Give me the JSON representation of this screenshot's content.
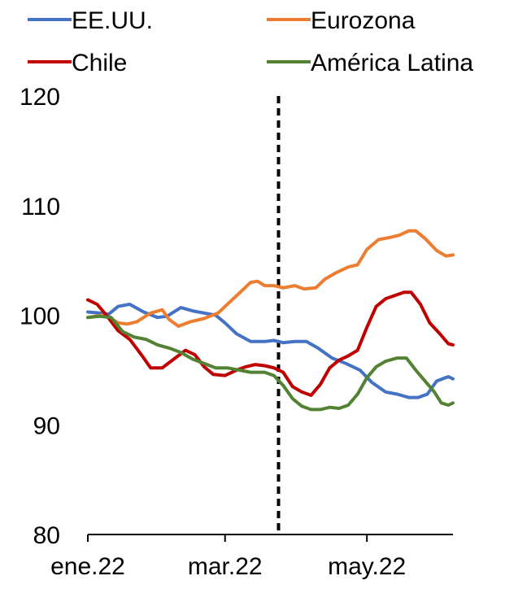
{
  "chart_data": {
    "type": "line",
    "title": "",
    "xlabel": "",
    "ylabel": "",
    "ylim": [
      80,
      120
    ],
    "yticks": [
      "80",
      "90",
      "100",
      "110",
      "120"
    ],
    "xticks": [
      {
        "label": "ene.22",
        "x": 0
      },
      {
        "label": "mar.22",
        "x": 59
      },
      {
        "label": "may.22",
        "x": 120
      }
    ],
    "x_range": [
      0,
      157
    ],
    "vertical_marker_x": 82,
    "grid": false,
    "legend": "top",
    "series": [
      {
        "name": "EE.UU.",
        "color": "#4472C4",
        "points": [
          [
            0,
            100.3
          ],
          [
            5,
            100.2
          ],
          [
            9,
            100.1
          ],
          [
            13,
            100.8
          ],
          [
            18,
            101.0
          ],
          [
            24,
            100.3
          ],
          [
            30,
            99.8
          ],
          [
            34,
            99.9
          ],
          [
            40,
            100.7
          ],
          [
            45,
            100.4
          ],
          [
            50,
            100.2
          ],
          [
            55,
            100.0
          ],
          [
            59,
            99.3
          ],
          [
            64,
            98.3
          ],
          [
            70,
            97.6
          ],
          [
            76,
            97.6
          ],
          [
            80,
            97.7
          ],
          [
            84,
            97.5
          ],
          [
            89,
            97.6
          ],
          [
            94,
            97.6
          ],
          [
            99,
            97.0
          ],
          [
            105,
            96.1
          ],
          [
            111,
            95.6
          ],
          [
            117,
            95.0
          ],
          [
            122,
            93.9
          ],
          [
            128,
            93.0
          ],
          [
            133,
            92.8
          ],
          [
            138,
            92.5
          ],
          [
            142,
            92.5
          ],
          [
            146,
            92.8
          ],
          [
            150,
            94.0
          ],
          [
            155,
            94.4
          ],
          [
            157,
            94.2
          ]
        ]
      },
      {
        "name": "Eurozona",
        "color": "#ED7D31",
        "points": [
          [
            0,
            99.8
          ],
          [
            6,
            100.0
          ],
          [
            10,
            99.7
          ],
          [
            13,
            99.3
          ],
          [
            17,
            99.2
          ],
          [
            21,
            99.4
          ],
          [
            27,
            100.2
          ],
          [
            32,
            100.5
          ],
          [
            35,
            99.6
          ],
          [
            39,
            99.0
          ],
          [
            44,
            99.4
          ],
          [
            50,
            99.7
          ],
          [
            56,
            100.2
          ],
          [
            61,
            101.2
          ],
          [
            66,
            102.2
          ],
          [
            70,
            103.0
          ],
          [
            73,
            103.1
          ],
          [
            76,
            102.7
          ],
          [
            80,
            102.7
          ],
          [
            84,
            102.5
          ],
          [
            89,
            102.7
          ],
          [
            93,
            102.4
          ],
          [
            98,
            102.5
          ],
          [
            102,
            103.3
          ],
          [
            107,
            103.9
          ],
          [
            112,
            104.4
          ],
          [
            116,
            104.6
          ],
          [
            120,
            106.0
          ],
          [
            125,
            106.9
          ],
          [
            130,
            107.1
          ],
          [
            134,
            107.3
          ],
          [
            138,
            107.7
          ],
          [
            141,
            107.7
          ],
          [
            145,
            107.0
          ],
          [
            150,
            105.9
          ],
          [
            154,
            105.4
          ],
          [
            157,
            105.5
          ]
        ]
      },
      {
        "name": "Chile",
        "color": "#C00000",
        "points": [
          [
            0,
            101.4
          ],
          [
            4,
            101.0
          ],
          [
            8,
            100.0
          ],
          [
            13,
            98.6
          ],
          [
            18,
            97.8
          ],
          [
            23,
            96.4
          ],
          [
            27,
            95.2
          ],
          [
            32,
            95.2
          ],
          [
            37,
            96.0
          ],
          [
            42,
            96.8
          ],
          [
            46,
            96.4
          ],
          [
            50,
            95.3
          ],
          [
            54,
            94.6
          ],
          [
            59,
            94.5
          ],
          [
            64,
            95.0
          ],
          [
            68,
            95.3
          ],
          [
            72,
            95.5
          ],
          [
            76,
            95.4
          ],
          [
            80,
            95.2
          ],
          [
            84,
            94.8
          ],
          [
            88,
            93.5
          ],
          [
            92,
            93.0
          ],
          [
            96,
            92.7
          ],
          [
            100,
            93.7
          ],
          [
            104,
            95.2
          ],
          [
            108,
            95.9
          ],
          [
            112,
            96.3
          ],
          [
            116,
            96.8
          ],
          [
            120,
            98.9
          ],
          [
            124,
            100.8
          ],
          [
            128,
            101.5
          ],
          [
            132,
            101.8
          ],
          [
            136,
            102.1
          ],
          [
            139,
            102.1
          ],
          [
            143,
            101.0
          ],
          [
            147,
            99.3
          ],
          [
            151,
            98.4
          ],
          [
            155,
            97.4
          ],
          [
            157,
            97.3
          ]
        ]
      },
      {
        "name": "América Latina",
        "color": "#548235",
        "points": [
          [
            0,
            99.8
          ],
          [
            5,
            99.9
          ],
          [
            10,
            99.8
          ],
          [
            15,
            98.5
          ],
          [
            20,
            98.0
          ],
          [
            25,
            97.8
          ],
          [
            30,
            97.3
          ],
          [
            35,
            97.0
          ],
          [
            40,
            96.6
          ],
          [
            45,
            96.0
          ],
          [
            50,
            95.6
          ],
          [
            55,
            95.2
          ],
          [
            60,
            95.2
          ],
          [
            65,
            95.0
          ],
          [
            70,
            94.8
          ],
          [
            76,
            94.8
          ],
          [
            80,
            94.5
          ],
          [
            84,
            93.6
          ],
          [
            88,
            92.4
          ],
          [
            92,
            91.7
          ],
          [
            96,
            91.4
          ],
          [
            100,
            91.4
          ],
          [
            104,
            91.6
          ],
          [
            108,
            91.5
          ],
          [
            112,
            91.8
          ],
          [
            116,
            92.8
          ],
          [
            120,
            94.3
          ],
          [
            124,
            95.3
          ],
          [
            128,
            95.8
          ],
          [
            133,
            96.1
          ],
          [
            137,
            96.1
          ],
          [
            141,
            95.0
          ],
          [
            145,
            94.0
          ],
          [
            149,
            93.0
          ],
          [
            152,
            92.0
          ],
          [
            155,
            91.8
          ],
          [
            157,
            92.0
          ]
        ]
      }
    ]
  }
}
